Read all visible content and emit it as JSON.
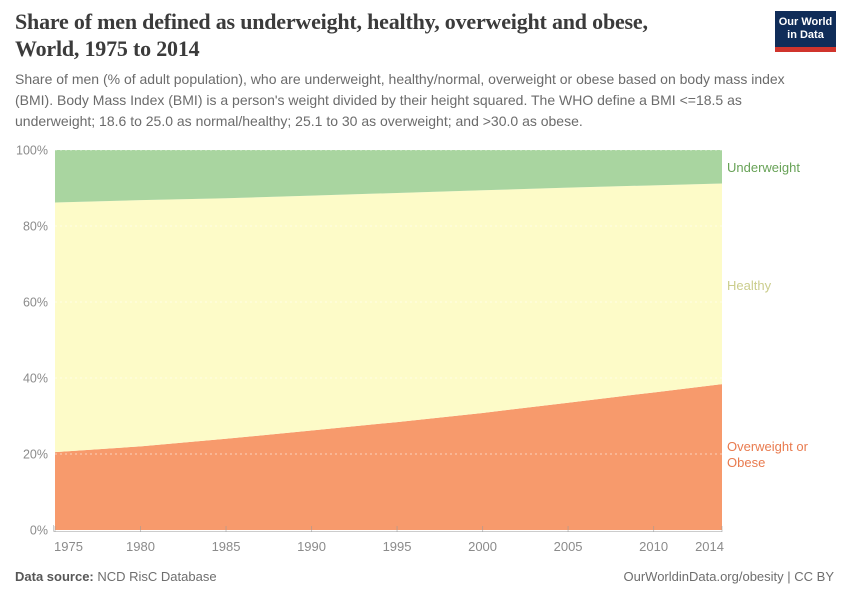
{
  "header": {
    "title_line1": "Share of men defined as underweight, healthy, overweight and obese,",
    "title_line2": "World, 1975 to 2014",
    "subtitle": "Share of men (% of adult population), who are underweight, healthy/normal, overweight or obese based on body mass index (BMI). Body Mass Index (BMI) is a person's weight divided by their height squared. The WHO define a BMI <=18.5 as underweight; 18.6 to 25.0 as normal/healthy; 25.1 to 30 as overweight; and >30.0 as obese.",
    "logo": {
      "line1": "Our World",
      "line2": "in Data",
      "bg_color": "#102d59",
      "stripe_color": "#d0342c"
    }
  },
  "footer": {
    "source_label": "Data source:",
    "source_value": " NCD RisC Database",
    "link_text": "OurWorldinData.org/obesity | CC BY"
  },
  "chart_data": {
    "type": "area",
    "stacked": true,
    "title": "Share of men defined as underweight, healthy, overweight and obese, World, 1975 to 2014",
    "x": [
      1975,
      1980,
      1985,
      1990,
      1995,
      2000,
      2005,
      2010,
      2014
    ],
    "xticks": [
      1975,
      1980,
      1985,
      1990,
      1995,
      2000,
      2005,
      2010,
      2014
    ],
    "ylim": [
      0,
      100
    ],
    "grid_values": [
      0,
      20,
      40,
      60,
      80,
      100
    ],
    "ytick_suffix": "%",
    "grid": "dashed-white-over-areas",
    "legend_position": "right-edge-labels",
    "axis_color": "#cccccc",
    "tick_text_color": "#8b8b8b",
    "series": [
      {
        "id": "overweight-obese",
        "name": "Overweight or Obese",
        "color": "#f79a6c",
        "label_color": "#e97b4f",
        "values": [
          20.5,
          22.0,
          24.0,
          26.2,
          28.4,
          30.8,
          33.5,
          36.2,
          38.4
        ]
      },
      {
        "id": "healthy",
        "name": "Healthy",
        "color": "#fdfbc8",
        "label_color": "#cbcd8d",
        "values": [
          65.7,
          64.8,
          63.3,
          61.8,
          60.3,
          58.6,
          56.6,
          54.5,
          52.8
        ]
      },
      {
        "id": "underweight",
        "name": "Underweight",
        "color": "#a9d5a0",
        "label_color": "#68a257",
        "values": [
          13.8,
          13.2,
          12.7,
          12.0,
          11.3,
          10.6,
          9.9,
          9.3,
          8.8
        ]
      }
    ]
  }
}
